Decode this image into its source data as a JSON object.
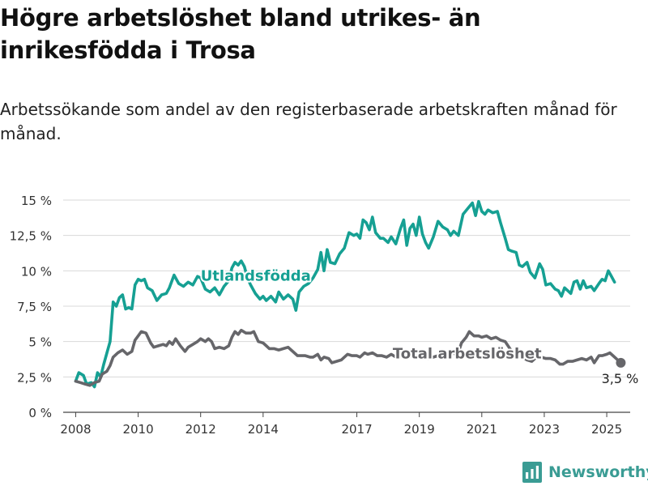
{
  "title": "Högre arbetslöshet bland utrikes- än inrikesfödda i Trosa",
  "subtitle": "Arbetssökande som andel av den registerbaserade arbetskraften månad för månad.",
  "brand": {
    "name": "Newsworthy",
    "icon": "newsworthy-logo-icon",
    "color": "#3a9c94"
  },
  "chart_data": {
    "type": "line",
    "ylim": [
      0,
      15
    ],
    "xlim": [
      2007.6,
      2025.75
    ],
    "y_ticks": [
      {
        "value": 0,
        "label": "0 %"
      },
      {
        "value": 2.5,
        "label": "2,5 %"
      },
      {
        "value": 5,
        "label": "5 %"
      },
      {
        "value": 7.5,
        "label": "7,5 %"
      },
      {
        "value": 10,
        "label": "10 %"
      },
      {
        "value": 12.5,
        "label": "12,5 %"
      },
      {
        "value": 15,
        "label": "15 %"
      }
    ],
    "x_ticks": [
      {
        "value": 2008,
        "label": "2008"
      },
      {
        "value": 2010,
        "label": "2010"
      },
      {
        "value": 2012,
        "label": "2012"
      },
      {
        "value": 2014,
        "label": "2014"
      },
      {
        "value": 2017,
        "label": "2017"
      },
      {
        "value": 2019,
        "label": "2019"
      },
      {
        "value": 2021,
        "label": "2021"
      },
      {
        "value": 2023,
        "label": "2023"
      },
      {
        "value": 2025,
        "label": "2025"
      }
    ],
    "grid": true,
    "series": [
      {
        "name": "Utlandsfödda",
        "color": "#16a093",
        "label_at": {
          "x": 2012.0,
          "y": 9.3
        },
        "points": [
          [
            2008.0,
            2.2
          ],
          [
            2008.1,
            2.8
          ],
          [
            2008.25,
            2.6
          ],
          [
            2008.35,
            2.0
          ],
          [
            2008.5,
            2.1
          ],
          [
            2008.6,
            1.8
          ],
          [
            2008.7,
            2.8
          ],
          [
            2008.8,
            2.5
          ],
          [
            2008.9,
            3.4
          ],
          [
            2009.0,
            4.2
          ],
          [
            2009.1,
            5.0
          ],
          [
            2009.2,
            7.8
          ],
          [
            2009.3,
            7.5
          ],
          [
            2009.4,
            8.1
          ],
          [
            2009.5,
            8.3
          ],
          [
            2009.6,
            7.3
          ],
          [
            2009.7,
            7.4
          ],
          [
            2009.8,
            7.3
          ],
          [
            2009.9,
            9.0
          ],
          [
            2010.0,
            9.4
          ],
          [
            2010.1,
            9.3
          ],
          [
            2010.2,
            9.4
          ],
          [
            2010.3,
            8.8
          ],
          [
            2010.45,
            8.6
          ],
          [
            2010.6,
            7.9
          ],
          [
            2010.75,
            8.3
          ],
          [
            2010.9,
            8.4
          ],
          [
            2011.0,
            8.8
          ],
          [
            2011.15,
            9.7
          ],
          [
            2011.3,
            9.1
          ],
          [
            2011.45,
            8.9
          ],
          [
            2011.6,
            9.2
          ],
          [
            2011.75,
            9.0
          ],
          [
            2011.9,
            9.6
          ],
          [
            2012.0,
            9.5
          ],
          [
            2012.15,
            8.7
          ],
          [
            2012.3,
            8.5
          ],
          [
            2012.45,
            8.8
          ],
          [
            2012.6,
            8.3
          ],
          [
            2012.75,
            8.9
          ],
          [
            2012.9,
            9.3
          ],
          [
            2013.0,
            10.2
          ],
          [
            2013.1,
            10.6
          ],
          [
            2013.2,
            10.4
          ],
          [
            2013.3,
            10.7
          ],
          [
            2013.4,
            10.3
          ],
          [
            2013.5,
            9.5
          ],
          [
            2013.6,
            9.0
          ],
          [
            2013.75,
            8.4
          ],
          [
            2013.9,
            8.0
          ],
          [
            2014.0,
            8.2
          ],
          [
            2014.1,
            7.9
          ],
          [
            2014.25,
            8.2
          ],
          [
            2014.4,
            7.8
          ],
          [
            2014.5,
            8.5
          ],
          [
            2014.65,
            8.0
          ],
          [
            2014.8,
            8.3
          ],
          [
            2014.95,
            8.0
          ],
          [
            2015.05,
            7.2
          ],
          [
            2015.15,
            8.5
          ],
          [
            2015.3,
            8.9
          ],
          [
            2015.45,
            9.1
          ],
          [
            2015.6,
            9.5
          ],
          [
            2015.75,
            10.1
          ],
          [
            2015.85,
            11.3
          ],
          [
            2015.95,
            10.0
          ],
          [
            2016.05,
            11.5
          ],
          [
            2016.15,
            10.6
          ],
          [
            2016.3,
            10.5
          ],
          [
            2016.45,
            11.2
          ],
          [
            2016.6,
            11.6
          ],
          [
            2016.75,
            12.7
          ],
          [
            2016.9,
            12.5
          ],
          [
            2017.0,
            12.6
          ],
          [
            2017.1,
            12.3
          ],
          [
            2017.2,
            13.6
          ],
          [
            2017.3,
            13.4
          ],
          [
            2017.4,
            12.9
          ],
          [
            2017.5,
            13.8
          ],
          [
            2017.6,
            12.7
          ],
          [
            2017.75,
            12.3
          ],
          [
            2017.85,
            12.3
          ],
          [
            2018.0,
            12.0
          ],
          [
            2018.1,
            12.4
          ],
          [
            2018.25,
            11.9
          ],
          [
            2018.4,
            13.0
          ],
          [
            2018.5,
            13.6
          ],
          [
            2018.6,
            11.8
          ],
          [
            2018.7,
            13.0
          ],
          [
            2018.8,
            13.3
          ],
          [
            2018.9,
            12.5
          ],
          [
            2019.0,
            13.8
          ],
          [
            2019.1,
            12.6
          ],
          [
            2019.2,
            12.0
          ],
          [
            2019.3,
            11.6
          ],
          [
            2019.45,
            12.4
          ],
          [
            2019.6,
            13.5
          ],
          [
            2019.75,
            13.1
          ],
          [
            2019.9,
            12.9
          ],
          [
            2020.0,
            12.5
          ],
          [
            2020.1,
            12.8
          ],
          [
            2020.25,
            12.5
          ],
          [
            2020.4,
            14.0
          ],
          [
            2020.55,
            14.4
          ],
          [
            2020.7,
            14.8
          ],
          [
            2020.8,
            13.9
          ],
          [
            2020.9,
            14.9
          ],
          [
            2021.0,
            14.2
          ],
          [
            2021.1,
            14.0
          ],
          [
            2021.2,
            14.3
          ],
          [
            2021.35,
            14.1
          ],
          [
            2021.5,
            14.2
          ],
          [
            2021.6,
            13.4
          ],
          [
            2021.75,
            12.3
          ],
          [
            2021.85,
            11.5
          ],
          [
            2021.95,
            11.4
          ],
          [
            2022.1,
            11.3
          ],
          [
            2022.2,
            10.4
          ],
          [
            2022.3,
            10.3
          ],
          [
            2022.45,
            10.6
          ],
          [
            2022.55,
            9.9
          ],
          [
            2022.7,
            9.5
          ],
          [
            2022.85,
            10.5
          ],
          [
            2022.95,
            10.1
          ],
          [
            2023.05,
            9.0
          ],
          [
            2023.2,
            9.1
          ],
          [
            2023.35,
            8.7
          ],
          [
            2023.45,
            8.6
          ],
          [
            2023.55,
            8.2
          ],
          [
            2023.65,
            8.8
          ],
          [
            2023.75,
            8.6
          ],
          [
            2023.85,
            8.4
          ],
          [
            2023.95,
            9.2
          ],
          [
            2024.05,
            9.3
          ],
          [
            2024.15,
            8.7
          ],
          [
            2024.25,
            9.3
          ],
          [
            2024.35,
            8.8
          ],
          [
            2024.5,
            8.9
          ],
          [
            2024.6,
            8.6
          ],
          [
            2024.75,
            9.1
          ],
          [
            2024.85,
            9.4
          ],
          [
            2024.95,
            9.3
          ],
          [
            2025.05,
            10.0
          ],
          [
            2025.15,
            9.6
          ],
          [
            2025.25,
            9.2
          ]
        ]
      },
      {
        "name": "Total arbetslöshet",
        "color": "#66666a",
        "label_at": {
          "x": 2018.15,
          "y": 3.8
        },
        "end_value": 3.5,
        "end_label": "3,5 %",
        "points": [
          [
            2008.0,
            2.2
          ],
          [
            2008.15,
            2.1
          ],
          [
            2008.3,
            2.0
          ],
          [
            2008.45,
            1.9
          ],
          [
            2008.6,
            2.1
          ],
          [
            2008.75,
            2.2
          ],
          [
            2008.85,
            2.7
          ],
          [
            2009.0,
            2.9
          ],
          [
            2009.1,
            3.3
          ],
          [
            2009.2,
            3.9
          ],
          [
            2009.35,
            4.2
          ],
          [
            2009.5,
            4.4
          ],
          [
            2009.65,
            4.1
          ],
          [
            2009.8,
            4.3
          ],
          [
            2009.9,
            5.1
          ],
          [
            2010.0,
            5.4
          ],
          [
            2010.1,
            5.7
          ],
          [
            2010.25,
            5.6
          ],
          [
            2010.4,
            4.9
          ],
          [
            2010.5,
            4.6
          ],
          [
            2010.65,
            4.7
          ],
          [
            2010.8,
            4.8
          ],
          [
            2010.9,
            4.7
          ],
          [
            2011.0,
            5.0
          ],
          [
            2011.1,
            4.8
          ],
          [
            2011.2,
            5.2
          ],
          [
            2011.35,
            4.7
          ],
          [
            2011.5,
            4.3
          ],
          [
            2011.6,
            4.6
          ],
          [
            2011.75,
            4.8
          ],
          [
            2011.9,
            5.0
          ],
          [
            2012.0,
            5.2
          ],
          [
            2012.15,
            5.0
          ],
          [
            2012.25,
            5.2
          ],
          [
            2012.35,
            5.0
          ],
          [
            2012.45,
            4.5
          ],
          [
            2012.6,
            4.6
          ],
          [
            2012.75,
            4.5
          ],
          [
            2012.9,
            4.7
          ],
          [
            2013.0,
            5.3
          ],
          [
            2013.1,
            5.7
          ],
          [
            2013.2,
            5.5
          ],
          [
            2013.3,
            5.8
          ],
          [
            2013.45,
            5.6
          ],
          [
            2013.6,
            5.6
          ],
          [
            2013.7,
            5.7
          ],
          [
            2013.85,
            5.0
          ],
          [
            2014.0,
            4.9
          ],
          [
            2014.1,
            4.7
          ],
          [
            2014.2,
            4.5
          ],
          [
            2014.35,
            4.5
          ],
          [
            2014.5,
            4.4
          ],
          [
            2014.65,
            4.5
          ],
          [
            2014.8,
            4.6
          ],
          [
            2014.9,
            4.4
          ],
          [
            2015.0,
            4.2
          ],
          [
            2015.1,
            4.0
          ],
          [
            2015.2,
            4.0
          ],
          [
            2015.35,
            4.0
          ],
          [
            2015.5,
            3.9
          ],
          [
            2015.6,
            3.9
          ],
          [
            2015.75,
            4.1
          ],
          [
            2015.85,
            3.7
          ],
          [
            2015.95,
            3.9
          ],
          [
            2016.1,
            3.8
          ],
          [
            2016.2,
            3.5
          ],
          [
            2016.35,
            3.6
          ],
          [
            2016.5,
            3.7
          ],
          [
            2016.7,
            4.1
          ],
          [
            2016.85,
            4.0
          ],
          [
            2017.0,
            4.0
          ],
          [
            2017.1,
            3.9
          ],
          [
            2017.25,
            4.2
          ],
          [
            2017.35,
            4.1
          ],
          [
            2017.5,
            4.2
          ],
          [
            2017.65,
            4.0
          ],
          [
            2017.8,
            4.0
          ],
          [
            2017.95,
            3.9
          ],
          [
            2018.1,
            4.1
          ],
          [
            2018.25,
            3.9
          ],
          [
            2018.4,
            4.0
          ],
          [
            2018.55,
            3.9
          ],
          [
            2018.7,
            4.1
          ],
          [
            2018.85,
            4.0
          ],
          [
            2019.0,
            3.9
          ],
          [
            2019.15,
            4.0
          ],
          [
            2019.3,
            3.8
          ],
          [
            2019.45,
            3.9
          ],
          [
            2019.6,
            4.0
          ],
          [
            2019.75,
            3.9
          ],
          [
            2019.9,
            4.0
          ],
          [
            2020.0,
            4.1
          ],
          [
            2020.1,
            4.3
          ],
          [
            2020.2,
            3.9
          ],
          [
            2020.35,
            4.9
          ],
          [
            2020.5,
            5.3
          ],
          [
            2020.6,
            5.7
          ],
          [
            2020.75,
            5.4
          ],
          [
            2020.9,
            5.4
          ],
          [
            2021.0,
            5.3
          ],
          [
            2021.15,
            5.4
          ],
          [
            2021.3,
            5.2
          ],
          [
            2021.45,
            5.3
          ],
          [
            2021.6,
            5.1
          ],
          [
            2021.75,
            5.0
          ],
          [
            2021.9,
            4.5
          ],
          [
            2022.0,
            4.2
          ],
          [
            2022.15,
            4.1
          ],
          [
            2022.3,
            3.9
          ],
          [
            2022.45,
            3.7
          ],
          [
            2022.6,
            3.6
          ],
          [
            2022.75,
            3.9
          ],
          [
            2022.9,
            3.9
          ],
          [
            2023.05,
            3.8
          ],
          [
            2023.2,
            3.8
          ],
          [
            2023.35,
            3.7
          ],
          [
            2023.5,
            3.4
          ],
          [
            2023.6,
            3.4
          ],
          [
            2023.75,
            3.6
          ],
          [
            2023.9,
            3.6
          ],
          [
            2024.05,
            3.7
          ],
          [
            2024.2,
            3.8
          ],
          [
            2024.35,
            3.7
          ],
          [
            2024.5,
            3.9
          ],
          [
            2024.6,
            3.5
          ],
          [
            2024.75,
            4.0
          ],
          [
            2024.85,
            4.0
          ],
          [
            2025.0,
            4.1
          ],
          [
            2025.1,
            4.2
          ],
          [
            2025.2,
            4.0
          ],
          [
            2025.3,
            3.8
          ],
          [
            2025.45,
            3.5
          ]
        ]
      }
    ]
  }
}
